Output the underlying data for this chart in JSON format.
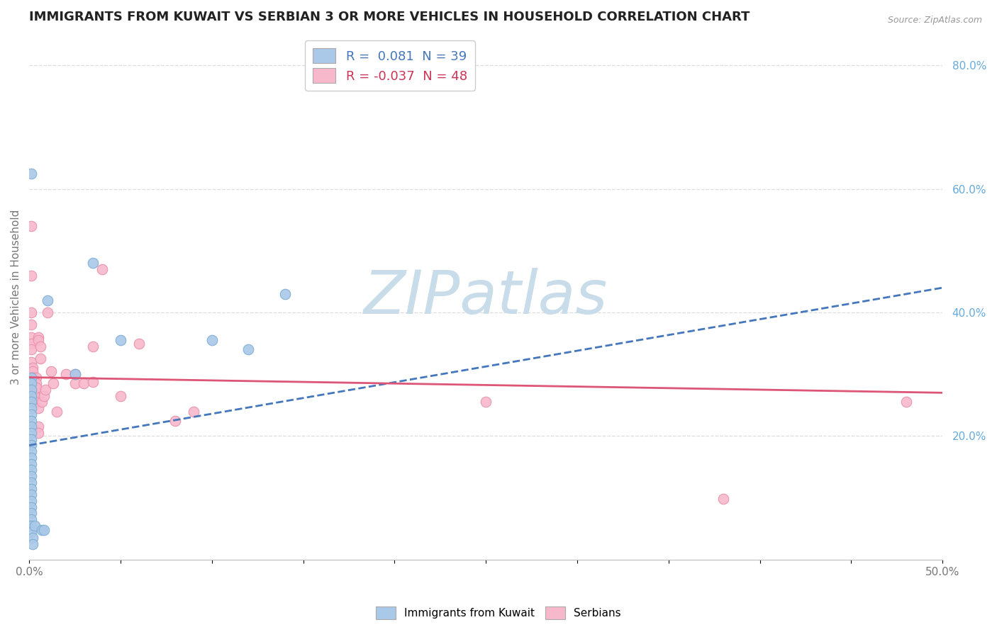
{
  "title": "IMMIGRANTS FROM KUWAIT VS SERBIAN 3 OR MORE VEHICLES IN HOUSEHOLD CORRELATION CHART",
  "source": "Source: ZipAtlas.com",
  "ylabel": "3 or more Vehicles in Household",
  "xlim": [
    0.0,
    0.5
  ],
  "ylim": [
    0.0,
    0.85
  ],
  "xticks": [
    0.0,
    0.05,
    0.1,
    0.15,
    0.2,
    0.25,
    0.3,
    0.35,
    0.4,
    0.45,
    0.5
  ],
  "xticklabels": [
    "0.0%",
    "",
    "",
    "",
    "",
    "",
    "",
    "",
    "",
    "",
    "50.0%"
  ],
  "yticks_right": [
    0.2,
    0.4,
    0.6,
    0.8
  ],
  "ytick_right_labels": [
    "20.0%",
    "40.0%",
    "60.0%",
    "80.0%"
  ],
  "legend_r1": "R =  0.081  N = 39",
  "legend_r2": "R = -0.037  N = 48",
  "blue_dots": [
    [
      0.001,
      0.625
    ],
    [
      0.001,
      0.295
    ],
    [
      0.001,
      0.285
    ],
    [
      0.001,
      0.275
    ],
    [
      0.001,
      0.265
    ],
    [
      0.001,
      0.255
    ],
    [
      0.001,
      0.245
    ],
    [
      0.001,
      0.235
    ],
    [
      0.001,
      0.225
    ],
    [
      0.001,
      0.215
    ],
    [
      0.001,
      0.205
    ],
    [
      0.001,
      0.195
    ],
    [
      0.001,
      0.185
    ],
    [
      0.001,
      0.175
    ],
    [
      0.001,
      0.165
    ],
    [
      0.001,
      0.155
    ],
    [
      0.001,
      0.145
    ],
    [
      0.001,
      0.135
    ],
    [
      0.001,
      0.125
    ],
    [
      0.001,
      0.115
    ],
    [
      0.001,
      0.105
    ],
    [
      0.001,
      0.095
    ],
    [
      0.001,
      0.085
    ],
    [
      0.001,
      0.075
    ],
    [
      0.001,
      0.065
    ],
    [
      0.001,
      0.055
    ],
    [
      0.001,
      0.045
    ],
    [
      0.002,
      0.035
    ],
    [
      0.002,
      0.025
    ],
    [
      0.003,
      0.055
    ],
    [
      0.007,
      0.048
    ],
    [
      0.008,
      0.048
    ],
    [
      0.01,
      0.42
    ],
    [
      0.025,
      0.3
    ],
    [
      0.035,
      0.48
    ],
    [
      0.05,
      0.355
    ],
    [
      0.1,
      0.355
    ],
    [
      0.12,
      0.34
    ],
    [
      0.14,
      0.43
    ]
  ],
  "pink_dots": [
    [
      0.001,
      0.54
    ],
    [
      0.001,
      0.46
    ],
    [
      0.001,
      0.4
    ],
    [
      0.001,
      0.38
    ],
    [
      0.001,
      0.36
    ],
    [
      0.001,
      0.35
    ],
    [
      0.001,
      0.34
    ],
    [
      0.001,
      0.32
    ],
    [
      0.002,
      0.31
    ],
    [
      0.002,
      0.305
    ],
    [
      0.002,
      0.295
    ],
    [
      0.002,
      0.285
    ],
    [
      0.002,
      0.265
    ],
    [
      0.003,
      0.28
    ],
    [
      0.003,
      0.275
    ],
    [
      0.003,
      0.265
    ],
    [
      0.003,
      0.255
    ],
    [
      0.004,
      0.295
    ],
    [
      0.004,
      0.285
    ],
    [
      0.004,
      0.278
    ],
    [
      0.005,
      0.36
    ],
    [
      0.005,
      0.355
    ],
    [
      0.005,
      0.245
    ],
    [
      0.005,
      0.215
    ],
    [
      0.005,
      0.205
    ],
    [
      0.006,
      0.345
    ],
    [
      0.006,
      0.325
    ],
    [
      0.007,
      0.255
    ],
    [
      0.008,
      0.265
    ],
    [
      0.009,
      0.275
    ],
    [
      0.01,
      0.4
    ],
    [
      0.012,
      0.305
    ],
    [
      0.013,
      0.285
    ],
    [
      0.015,
      0.24
    ],
    [
      0.02,
      0.3
    ],
    [
      0.025,
      0.285
    ],
    [
      0.025,
      0.3
    ],
    [
      0.03,
      0.285
    ],
    [
      0.035,
      0.345
    ],
    [
      0.035,
      0.288
    ],
    [
      0.04,
      0.47
    ],
    [
      0.05,
      0.265
    ],
    [
      0.06,
      0.35
    ],
    [
      0.08,
      0.225
    ],
    [
      0.09,
      0.24
    ],
    [
      0.25,
      0.255
    ],
    [
      0.38,
      0.098
    ],
    [
      0.48,
      0.255
    ]
  ],
  "blue_line_x": [
    0.0,
    0.5
  ],
  "blue_line_y": [
    0.185,
    0.44
  ],
  "pink_line_x": [
    0.0,
    0.5
  ],
  "pink_line_y": [
    0.295,
    0.27
  ],
  "watermark": "ZIPatlas",
  "watermark_color": "#c8dcea",
  "background_color": "#ffffff",
  "dot_size": 110,
  "blue_color": "#aac8e8",
  "blue_edge": "#7aadd4",
  "pink_color": "#f8b8cc",
  "pink_edge": "#e890a8",
  "blue_line_color": "#4477bb",
  "pink_line_color": "#dd5577",
  "grid_color": "#dddddd",
  "axis_label_color": "#777777",
  "right_tick_color": "#66aadd",
  "title_color": "#222222",
  "source_color": "#999999"
}
